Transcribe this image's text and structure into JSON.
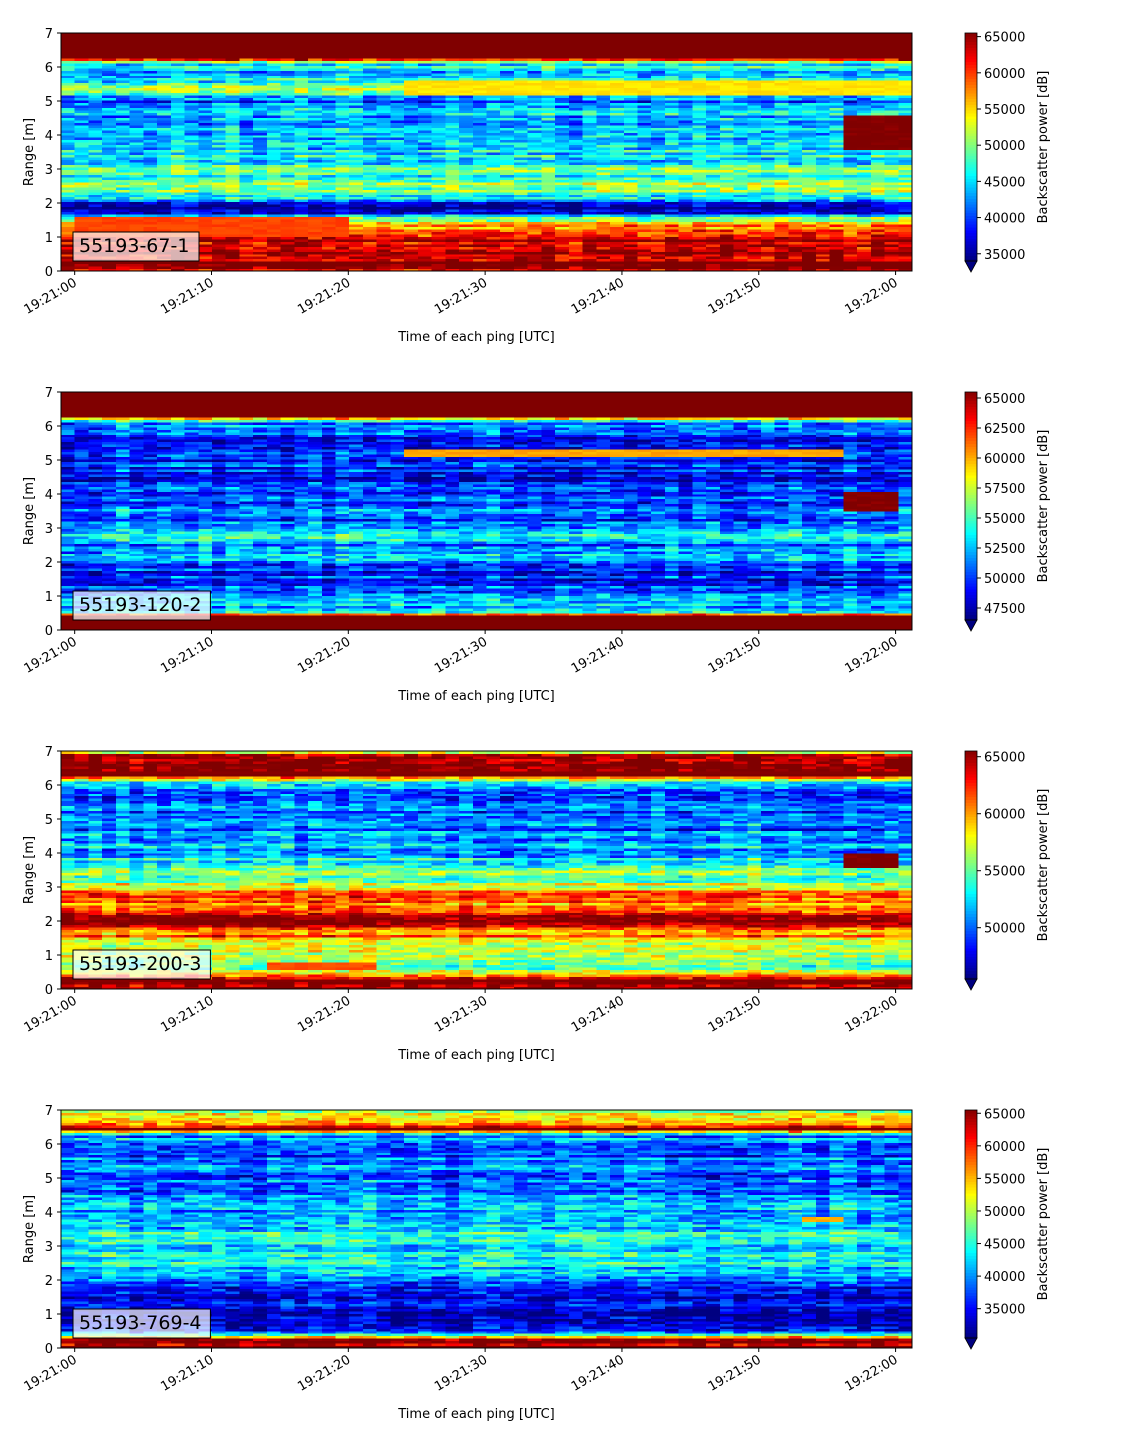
{
  "chart_data": [
    {
      "type": "heatmap",
      "label": "55193-67-1",
      "xlabel": "Time of each ping [UTC]",
      "ylabel": "Range [m]",
      "ylim": [
        0,
        7
      ],
      "yticks": [
        "0",
        "1",
        "2",
        "3",
        "4",
        "5",
        "6",
        "7"
      ],
      "xticks": [
        "19:21:00",
        "19:21:10",
        "19:21:20",
        "19:21:30",
        "19:21:40",
        "19:21:50",
        "19:22:00"
      ],
      "colorbar": {
        "label": "Backscatter power [dB]",
        "colormap": "jet",
        "vmin": 34000,
        "vmax": 65500,
        "ticks": [
          "35000",
          "40000",
          "45000",
          "50000",
          "55000",
          "60000",
          "65000"
        ],
        "tick_values": [
          35000,
          40000,
          45000,
          50000,
          55000,
          60000,
          65000
        ],
        "extend": "min"
      },
      "profile": [
        [
          0.0,
          64000
        ],
        [
          0.25,
          65500
        ],
        [
          0.7,
          64000
        ],
        [
          1.05,
          62000
        ],
        [
          1.3,
          58000
        ],
        [
          1.55,
          48000
        ],
        [
          1.75,
          36000
        ],
        [
          2.0,
          35500
        ],
        [
          2.15,
          44000
        ],
        [
          2.35,
          51000
        ],
        [
          2.6,
          49000
        ],
        [
          3.0,
          47500
        ],
        [
          3.3,
          46000
        ],
        [
          3.7,
          45000
        ],
        [
          4.0,
          44000
        ],
        [
          4.4,
          43500
        ],
        [
          4.8,
          44000
        ],
        [
          5.0,
          39000
        ],
        [
          5.3,
          50000
        ],
        [
          5.6,
          47000
        ],
        [
          5.9,
          44000
        ],
        [
          6.15,
          46000
        ],
        [
          6.25,
          65500
        ],
        [
          7.0,
          65500
        ]
      ],
      "features": [
        {
          "t0": 0,
          "t1": 20,
          "y0": 1.0,
          "y1": 1.6,
          "value": 59500
        },
        {
          "t0": 24,
          "t1": 61,
          "y0": 5.2,
          "y1": 5.6,
          "value": 54500
        },
        {
          "t0": 56.5,
          "t1": 61,
          "y0": 3.6,
          "y1": 4.6,
          "value": 65500
        }
      ]
    },
    {
      "type": "heatmap",
      "label": "55193-120-2",
      "xlabel": "Time of each ping [UTC]",
      "ylabel": "Range [m]",
      "ylim": [
        0,
        7
      ],
      "yticks": [
        "0",
        "1",
        "2",
        "3",
        "4",
        "5",
        "6",
        "7"
      ],
      "xticks": [
        "19:21:00",
        "19:21:10",
        "19:21:20",
        "19:21:30",
        "19:21:40",
        "19:21:50",
        "19:22:00"
      ],
      "colorbar": {
        "label": "Backscatter power [dB]",
        "colormap": "jet",
        "vmin": 46500,
        "vmax": 65500,
        "ticks": [
          "47500",
          "50000",
          "52500",
          "55000",
          "57500",
          "60000",
          "62500",
          "65000"
        ],
        "tick_values": [
          47500,
          50000,
          52500,
          55000,
          57500,
          60000,
          62500,
          65000
        ],
        "extend": "min"
      },
      "profile": [
        [
          0.0,
          65500
        ],
        [
          0.45,
          65500
        ],
        [
          0.55,
          54000
        ],
        [
          0.8,
          52000
        ],
        [
          1.2,
          50000
        ],
        [
          1.6,
          49500
        ],
        [
          2.0,
          51000
        ],
        [
          2.2,
          53500
        ],
        [
          2.5,
          51000
        ],
        [
          2.85,
          54000
        ],
        [
          3.0,
          49500
        ],
        [
          3.4,
          51000
        ],
        [
          3.8,
          50500
        ],
        [
          4.2,
          50000
        ],
        [
          4.6,
          49000
        ],
        [
          5.0,
          50000
        ],
        [
          5.4,
          49000
        ],
        [
          5.8,
          50500
        ],
        [
          6.1,
          51000
        ],
        [
          6.3,
          65500
        ],
        [
          7.0,
          65500
        ]
      ],
      "features": [
        {
          "t0": 24,
          "t1": 56,
          "y0": 5.1,
          "y1": 5.3,
          "value": 60000
        },
        {
          "t0": 56.5,
          "t1": 60,
          "y0": 3.5,
          "y1": 4.1,
          "value": 65500
        }
      ]
    },
    {
      "type": "heatmap",
      "label": "55193-200-3",
      "xlabel": "Time of each ping [UTC]",
      "ylabel": "Range [m]",
      "ylim": [
        0,
        7
      ],
      "yticks": [
        "0",
        "1",
        "2",
        "3",
        "4",
        "5",
        "6",
        "7"
      ],
      "xticks": [
        "19:21:00",
        "19:21:10",
        "19:21:20",
        "19:21:30",
        "19:21:40",
        "19:21:50",
        "19:22:00"
      ],
      "colorbar": {
        "label": "Backscatter power [dB]",
        "colormap": "jet",
        "vmin": 45500,
        "vmax": 65500,
        "ticks": [
          "50000",
          "55000",
          "60000",
          "65000"
        ],
        "tick_values": [
          50000,
          55000,
          60000,
          65000
        ],
        "extend": "min"
      },
      "profile": [
        [
          0.0,
          64500
        ],
        [
          0.3,
          65500
        ],
        [
          0.45,
          57000
        ],
        [
          0.8,
          55000
        ],
        [
          1.2,
          56000
        ],
        [
          1.5,
          60000
        ],
        [
          1.8,
          62000
        ],
        [
          2.05,
          64500
        ],
        [
          2.25,
          63500
        ],
        [
          2.5,
          60000
        ],
        [
          2.8,
          61000
        ],
        [
          3.1,
          56000
        ],
        [
          3.5,
          54000
        ],
        [
          3.9,
          52000
        ],
        [
          4.3,
          50500
        ],
        [
          4.8,
          50000
        ],
        [
          5.3,
          49500
        ],
        [
          5.8,
          50000
        ],
        [
          6.1,
          51500
        ],
        [
          6.3,
          65500
        ],
        [
          6.85,
          64500
        ],
        [
          7.0,
          57000
        ]
      ],
      "features": [
        {
          "t0": 14,
          "t1": 22,
          "y0": 0.6,
          "y1": 0.8,
          "value": 61500
        },
        {
          "t0": 56.5,
          "t1": 60,
          "y0": 3.6,
          "y1": 4.0,
          "value": 65500
        }
      ]
    },
    {
      "type": "heatmap",
      "label": "55193-769-4",
      "xlabel": "Time of each ping [UTC]",
      "ylabel": "Range [m]",
      "ylim": [
        0,
        7
      ],
      "yticks": [
        "0",
        "1",
        "2",
        "3",
        "4",
        "5",
        "6",
        "7"
      ],
      "xticks": [
        "19:21:00",
        "19:21:10",
        "19:21:20",
        "19:21:30",
        "19:21:40",
        "19:21:50",
        "19:22:00"
      ],
      "colorbar": {
        "label": "Backscatter power [dB]",
        "colormap": "jet",
        "vmin": 30500,
        "vmax": 65500,
        "ticks": [
          "35000",
          "40000",
          "45000",
          "50000",
          "55000",
          "60000",
          "65000"
        ],
        "tick_values": [
          35000,
          40000,
          45000,
          50000,
          55000,
          60000,
          65000
        ],
        "extend": "min"
      },
      "profile": [
        [
          0.0,
          64500
        ],
        [
          0.25,
          65500
        ],
        [
          0.45,
          38000
        ],
        [
          0.8,
          33500
        ],
        [
          1.3,
          33000
        ],
        [
          1.8,
          35000
        ],
        [
          2.1,
          38000
        ],
        [
          2.4,
          43000
        ],
        [
          2.8,
          44000
        ],
        [
          3.2,
          43500
        ],
        [
          3.6,
          42000
        ],
        [
          4.0,
          40000
        ],
        [
          4.5,
          39500
        ],
        [
          5.0,
          38500
        ],
        [
          5.5,
          38000
        ],
        [
          6.0,
          37500
        ],
        [
          6.3,
          41000
        ],
        [
          6.45,
          65500
        ],
        [
          6.6,
          59000
        ],
        [
          6.8,
          52000
        ],
        [
          7.0,
          50000
        ]
      ],
      "features": [
        {
          "t0": 53,
          "t1": 56,
          "y0": 3.7,
          "y1": 3.9,
          "value": 55000
        }
      ]
    }
  ]
}
